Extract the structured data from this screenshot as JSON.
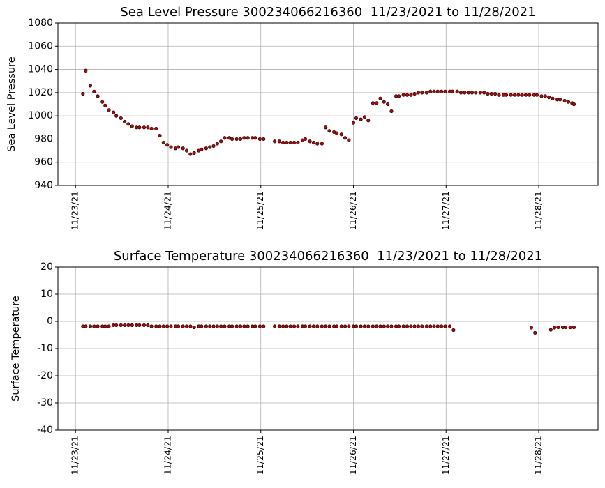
{
  "chart_data": [
    {
      "type": "scatter",
      "title": "Sea Level Pressure 300234066216360  11/23/2021 to 11/28/2021",
      "ylabel": "Sea Level Pressure",
      "color": "#a01010",
      "grid": true,
      "xlim": [
        22.81,
        28.64
      ],
      "ylim": [
        940,
        1080
      ],
      "xticks": [
        {
          "value": 23,
          "label": "11/23/21"
        },
        {
          "value": 24,
          "label": "11/24/21"
        },
        {
          "value": 25,
          "label": "11/25/21"
        },
        {
          "value": 26,
          "label": "11/26/21"
        },
        {
          "value": 27,
          "label": "11/27/21"
        },
        {
          "value": 28,
          "label": "11/28/21"
        }
      ],
      "yticks": [
        940,
        960,
        980,
        1000,
        1020,
        1040,
        1060,
        1080
      ],
      "x": [
        23.08,
        23.11,
        23.16,
        23.2,
        23.24,
        23.29,
        23.32,
        23.36,
        23.41,
        23.44,
        23.49,
        23.53,
        23.57,
        23.61,
        23.66,
        23.69,
        23.74,
        23.78,
        23.82,
        23.87,
        23.91,
        23.95,
        23.99,
        24.03,
        24.08,
        24.11,
        24.16,
        24.2,
        24.24,
        24.28,
        24.33,
        24.36,
        24.41,
        24.45,
        24.49,
        24.53,
        24.57,
        24.61,
        24.66,
        24.69,
        24.74,
        24.78,
        24.82,
        24.86,
        24.91,
        24.94,
        24.99,
        25.03,
        25.15,
        25.2,
        25.24,
        25.28,
        25.32,
        25.36,
        25.4,
        25.45,
        25.48,
        25.53,
        25.57,
        25.61,
        25.66,
        25.7,
        25.74,
        25.79,
        25.82,
        25.87,
        25.91,
        25.95,
        26.0,
        26.03,
        26.08,
        26.12,
        26.16,
        26.21,
        26.25,
        26.29,
        26.33,
        26.37,
        26.41,
        26.46,
        26.49,
        26.54,
        26.58,
        26.62,
        26.66,
        26.7,
        26.74,
        26.79,
        26.83,
        26.87,
        26.91,
        26.95,
        26.99,
        27.04,
        27.07,
        27.12,
        27.16,
        27.2,
        27.24,
        27.28,
        27.32,
        27.37,
        27.41,
        27.45,
        27.49,
        27.53,
        27.57,
        27.62,
        27.65,
        27.7,
        27.74,
        27.78,
        27.82,
        27.86,
        27.9,
        27.95,
        27.98,
        28.03,
        28.07,
        28.11,
        28.15,
        28.2,
        28.23,
        28.28,
        28.32,
        28.36,
        28.38
      ],
      "values": [
        1019,
        1039,
        1026,
        1021,
        1017,
        1012,
        1009,
        1005,
        1003,
        1000,
        998,
        995,
        993,
        991,
        990,
        990,
        990,
        990,
        989,
        989,
        983,
        977,
        975,
        973,
        972,
        973,
        972,
        970,
        967,
        968,
        970,
        971,
        972,
        973,
        974,
        976,
        978,
        981,
        981,
        980,
        980,
        980,
        981,
        981,
        981,
        981,
        980,
        980,
        978,
        978,
        977,
        977,
        977,
        977,
        977,
        979,
        980,
        978,
        977,
        976,
        976,
        990,
        987,
        986,
        985,
        984,
        981,
        979,
        994,
        998,
        997,
        999,
        996,
        1011,
        1011,
        1015,
        1012,
        1010,
        1004,
        1017,
        1017,
        1018,
        1018,
        1018,
        1019,
        1020,
        1020,
        1020,
        1021,
        1021,
        1021,
        1021,
        1021,
        1021,
        1021,
        1021,
        1020,
        1020,
        1020,
        1020,
        1020,
        1020,
        1020,
        1019,
        1019,
        1019,
        1018,
        1018,
        1018,
        1018,
        1018,
        1018,
        1018,
        1018,
        1018,
        1018,
        1018,
        1017,
        1017,
        1016,
        1015,
        1014,
        1014,
        1013,
        1012,
        1011,
        1010
      ]
    },
    {
      "type": "scatter",
      "title": "Surface Temperature 300234066216360  11/23/2021 to 11/28/2021",
      "ylabel": "Surface Temperature",
      "color": "#a01010",
      "grid": true,
      "xlim": [
        22.81,
        28.64
      ],
      "ylim": [
        -40,
        20
      ],
      "xticks": [
        {
          "value": 23,
          "label": "11/23/21"
        },
        {
          "value": 24,
          "label": "11/24/21"
        },
        {
          "value": 25,
          "label": "11/25/21"
        },
        {
          "value": 26,
          "label": "11/26/21"
        },
        {
          "value": 27,
          "label": "11/27/21"
        },
        {
          "value": 28,
          "label": "11/28/21"
        }
      ],
      "yticks": [
        -40,
        -30,
        -20,
        -10,
        0,
        10,
        20
      ],
      "x": [
        23.08,
        23.11,
        23.16,
        23.2,
        23.24,
        23.29,
        23.32,
        23.36,
        23.41,
        23.44,
        23.49,
        23.53,
        23.57,
        23.61,
        23.66,
        23.69,
        23.74,
        23.78,
        23.82,
        23.87,
        23.91,
        23.95,
        23.99,
        24.03,
        24.08,
        24.11,
        24.16,
        24.2,
        24.24,
        24.28,
        24.33,
        24.36,
        24.41,
        24.45,
        24.49,
        24.53,
        24.57,
        24.61,
        24.66,
        24.69,
        24.74,
        24.78,
        24.82,
        24.86,
        24.91,
        24.94,
        24.99,
        25.03,
        25.15,
        25.2,
        25.24,
        25.28,
        25.32,
        25.36,
        25.4,
        25.45,
        25.48,
        25.53,
        25.57,
        25.61,
        25.66,
        25.7,
        25.74,
        25.79,
        25.82,
        25.87,
        25.91,
        25.95,
        26.0,
        26.03,
        26.08,
        26.12,
        26.16,
        26.21,
        26.25,
        26.29,
        26.33,
        26.37,
        26.41,
        26.46,
        26.49,
        26.54,
        26.58,
        26.62,
        26.66,
        26.7,
        26.74,
        26.79,
        26.83,
        26.87,
        26.91,
        26.95,
        26.99,
        27.04,
        27.08,
        27.92,
        27.96,
        28.13,
        28.17,
        28.21,
        28.26,
        28.29,
        28.34,
        28.38
      ],
      "values": [
        -1.8,
        -1.8,
        -1.8,
        -1.8,
        -1.8,
        -1.8,
        -1.8,
        -1.8,
        -1.4,
        -1.4,
        -1.4,
        -1.4,
        -1.4,
        -1.4,
        -1.4,
        -1.4,
        -1.4,
        -1.4,
        -1.8,
        -1.8,
        -1.8,
        -1.8,
        -1.8,
        -1.8,
        -1.8,
        -1.8,
        -1.8,
        -1.8,
        -1.8,
        -2.2,
        -1.8,
        -1.8,
        -1.8,
        -1.8,
        -1.8,
        -1.8,
        -1.8,
        -1.8,
        -1.8,
        -1.8,
        -1.8,
        -1.8,
        -1.8,
        -1.8,
        -1.8,
        -1.8,
        -1.8,
        -1.8,
        -1.8,
        -1.8,
        -1.8,
        -1.8,
        -1.8,
        -1.8,
        -1.8,
        -1.8,
        -1.8,
        -1.8,
        -1.8,
        -1.8,
        -1.8,
        -1.8,
        -1.8,
        -1.8,
        -1.8,
        -1.8,
        -1.8,
        -1.8,
        -1.8,
        -1.8,
        -1.8,
        -1.8,
        -1.8,
        -1.8,
        -1.8,
        -1.8,
        -1.8,
        -1.8,
        -1.8,
        -1.8,
        -1.8,
        -1.8,
        -1.8,
        -1.8,
        -1.8,
        -1.8,
        -1.8,
        -1.8,
        -1.8,
        -1.8,
        -1.8,
        -1.8,
        -1.8,
        -1.8,
        -3.2,
        -2.3,
        -4.2,
        -3.1,
        -2.3,
        -2.2,
        -2.2,
        -2.2,
        -2.2,
        -2.2
      ]
    }
  ]
}
